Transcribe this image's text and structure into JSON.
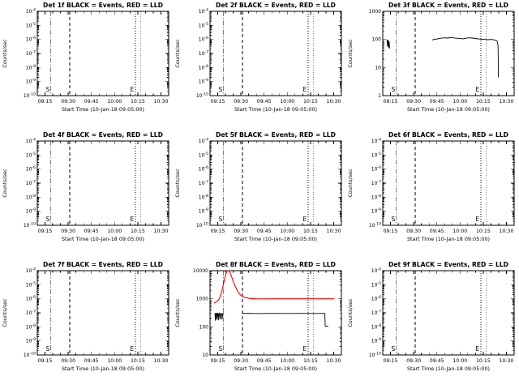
{
  "page": {
    "background": "#ffffff",
    "accent_black": "#000000",
    "accent_red": "#ff0000"
  },
  "chart_data": [
    {
      "type": "line",
      "title": "Det 1f BLACK = Events, RED = LLD",
      "xlabel": "Start Time (10-Jan-18 09:05:00)",
      "ylabel": "Counts/sec",
      "x_range_minutes": [
        10,
        95
      ],
      "x_tick_minutes": [
        15,
        30,
        45,
        60,
        75,
        90
      ],
      "x_tick_labels": [
        "09:15",
        "09:30",
        "09:45",
        "10:00",
        "10:15",
        "10:30"
      ],
      "y_log_range_exp": [
        -10,
        -4
      ],
      "y_tick_exps": [
        -10,
        -9,
        -8,
        -7,
        -6,
        -5,
        -4
      ],
      "y_plain": false,
      "vlines": [
        {
          "x_min": 18.5,
          "style": "dashdot"
        },
        {
          "x_min": 31,
          "style": "dashed"
        },
        {
          "x_min": 73.5,
          "style": "dotted"
        },
        {
          "x_min": 77,
          "style": "dotted"
        }
      ],
      "markers": [
        {
          "label": "S",
          "x_min": 15.5
        },
        {
          "label": "E",
          "x_min": 70
        }
      ],
      "series": []
    },
    {
      "type": "line",
      "title": "Det 2f BLACK = Events, RED = LLD",
      "xlabel": "Start Time (10-Jan-18 09:05:00)",
      "ylabel": "Counts/sec",
      "x_range_minutes": [
        10,
        95
      ],
      "x_tick_minutes": [
        15,
        30,
        45,
        60,
        75,
        90
      ],
      "x_tick_labels": [
        "09:15",
        "09:30",
        "09:45",
        "10:00",
        "10:15",
        "10:30"
      ],
      "y_log_range_exp": [
        -10,
        -4
      ],
      "y_tick_exps": [
        -10,
        -9,
        -8,
        -7,
        -6,
        -5,
        -4
      ],
      "y_plain": false,
      "vlines": [
        {
          "x_min": 18.5,
          "style": "dashdot"
        },
        {
          "x_min": 31,
          "style": "dashed"
        },
        {
          "x_min": 73.5,
          "style": "dotted"
        },
        {
          "x_min": 77,
          "style": "dotted"
        }
      ],
      "markers": [
        {
          "label": "S",
          "x_min": 15.5
        },
        {
          "label": "E",
          "x_min": 70
        }
      ],
      "series": []
    },
    {
      "type": "line",
      "title": "Det 3f BLACK = Events, RED = LLD",
      "xlabel": "Start Time (10-Jan-18 09:05:00)",
      "ylabel": "Counts/sec",
      "x_range_minutes": [
        10,
        95
      ],
      "x_tick_minutes": [
        15,
        30,
        45,
        60,
        75,
        90
      ],
      "x_tick_labels": [
        "09:15",
        "09:30",
        "09:45",
        "10:00",
        "10:15",
        "10:30"
      ],
      "y_log_range_exp": [
        0,
        3
      ],
      "y_tick_exps": [
        0,
        1,
        2,
        3
      ],
      "y_plain": true,
      "vlines": [
        {
          "x_min": 18.5,
          "style": "dashdot"
        },
        {
          "x_min": 31,
          "style": "dashed"
        },
        {
          "x_min": 73.5,
          "style": "dotted"
        },
        {
          "x_min": 77,
          "style": "dotted"
        }
      ],
      "markers": [
        {
          "label": "S",
          "x_min": 15.5
        },
        {
          "label": "E",
          "x_min": 70
        }
      ],
      "series": [
        {
          "name": "Events",
          "color": "#000000",
          "width": 0.9,
          "segments": [
            {
              "x": [
                12.8,
                13.0,
                13.1,
                13.3,
                13.4,
                13.6,
                13.8,
                14.0,
                14.2,
                14.4
              ],
              "y": [
                100,
                62,
                95,
                55,
                90,
                65,
                88,
                52,
                80,
                47
              ]
            },
            {
              "x": [
                42,
                43,
                44,
                45,
                46,
                48,
                50,
                52,
                54,
                56,
                58,
                60,
                62,
                63,
                64,
                66,
                68,
                70,
                72,
                74,
                76,
                78,
                80,
                82,
                83,
                84,
                84.6,
                84.8
              ],
              "y": [
                96,
                100,
                104,
                102,
                107,
                111,
                114,
                112,
                116,
                113,
                110,
                107,
                105,
                108,
                111,
                114,
                112,
                108,
                104,
                102,
                100,
                98,
                100,
                97,
                92,
                88,
                60,
                4.5
              ]
            }
          ]
        }
      ]
    },
    {
      "type": "line",
      "title": "Det 4f BLACK = Events, RED = LLD",
      "xlabel": "Start Time (10-Jan-18 09:05:00)",
      "ylabel": "Counts/sec",
      "x_range_minutes": [
        10,
        95
      ],
      "x_tick_minutes": [
        15,
        30,
        45,
        60,
        75,
        90
      ],
      "x_tick_labels": [
        "09:15",
        "09:30",
        "09:45",
        "10:00",
        "10:15",
        "10:30"
      ],
      "y_log_range_exp": [
        -10,
        -4
      ],
      "y_tick_exps": [
        -10,
        -9,
        -8,
        -7,
        -6,
        -5,
        -4
      ],
      "y_plain": false,
      "vlines": [
        {
          "x_min": 18.5,
          "style": "dashdot"
        },
        {
          "x_min": 31,
          "style": "dashed"
        },
        {
          "x_min": 73.5,
          "style": "dotted"
        },
        {
          "x_min": 77,
          "style": "dotted"
        }
      ],
      "markers": [
        {
          "label": "S",
          "x_min": 15.5
        },
        {
          "label": "E",
          "x_min": 70
        }
      ],
      "series": []
    },
    {
      "type": "line",
      "title": "Det 5f BLACK = Events, RED = LLD",
      "xlabel": "Start Time (10-Jan-18 09:05:00)",
      "ylabel": "Counts/sec",
      "x_range_minutes": [
        10,
        95
      ],
      "x_tick_minutes": [
        15,
        30,
        45,
        60,
        75,
        90
      ],
      "x_tick_labels": [
        "09:15",
        "09:30",
        "09:45",
        "10:00",
        "10:15",
        "10:30"
      ],
      "y_log_range_exp": [
        -10,
        -4
      ],
      "y_tick_exps": [
        -10,
        -9,
        -8,
        -7,
        -6,
        -5,
        -4
      ],
      "y_plain": false,
      "vlines": [
        {
          "x_min": 18.5,
          "style": "dashdot"
        },
        {
          "x_min": 31,
          "style": "dashed"
        },
        {
          "x_min": 73.5,
          "style": "dotted"
        },
        {
          "x_min": 77,
          "style": "dotted"
        }
      ],
      "markers": [
        {
          "label": "S",
          "x_min": 15.5
        },
        {
          "label": "E",
          "x_min": 70
        }
      ],
      "series": []
    },
    {
      "type": "line",
      "title": "Det 6f BLACK = Events, RED = LLD",
      "xlabel": "Start Time (10-Jan-18 09:05:00)",
      "ylabel": "Counts/sec",
      "x_range_minutes": [
        10,
        95
      ],
      "x_tick_minutes": [
        15,
        30,
        45,
        60,
        75,
        90
      ],
      "x_tick_labels": [
        "09:15",
        "09:30",
        "09:45",
        "10:00",
        "10:15",
        "10:30"
      ],
      "y_log_range_exp": [
        -10,
        -4
      ],
      "y_tick_exps": [
        -10,
        -9,
        -8,
        -7,
        -6,
        -5,
        -4
      ],
      "y_plain": false,
      "vlines": [
        {
          "x_min": 18.5,
          "style": "dashdot"
        },
        {
          "x_min": 31,
          "style": "dashed"
        },
        {
          "x_min": 73.5,
          "style": "dotted"
        },
        {
          "x_min": 77,
          "style": "dotted"
        }
      ],
      "markers": [
        {
          "label": "S",
          "x_min": 15.5
        },
        {
          "label": "E",
          "x_min": 70
        }
      ],
      "series": []
    },
    {
      "type": "line",
      "title": "Det 7f BLACK = Events, RED = LLD",
      "xlabel": "Start Time (10-Jan-18 09:05:00)",
      "ylabel": "Counts/sec",
      "x_range_minutes": [
        10,
        95
      ],
      "x_tick_minutes": [
        15,
        30,
        45,
        60,
        75,
        90
      ],
      "x_tick_labels": [
        "09:15",
        "09:30",
        "09:45",
        "10:00",
        "10:15",
        "10:30"
      ],
      "y_log_range_exp": [
        -10,
        -4
      ],
      "y_tick_exps": [
        -10,
        -9,
        -8,
        -7,
        -6,
        -5,
        -4
      ],
      "y_plain": false,
      "vlines": [
        {
          "x_min": 18.5,
          "style": "dashdot"
        },
        {
          "x_min": 31,
          "style": "dashed"
        },
        {
          "x_min": 73.5,
          "style": "dotted"
        },
        {
          "x_min": 77,
          "style": "dotted"
        }
      ],
      "markers": [
        {
          "label": "S",
          "x_min": 15.5
        },
        {
          "label": "E",
          "x_min": 70
        }
      ],
      "series": []
    },
    {
      "type": "line",
      "title": "Det 8f BLACK = Events, RED = LLD",
      "xlabel": "Start Time (10-Jan-18 09:05:00)",
      "ylabel": "Counts/sec",
      "x_range_minutes": [
        10,
        95
      ],
      "x_tick_minutes": [
        15,
        30,
        45,
        60,
        75,
        90
      ],
      "x_tick_labels": [
        "09:15",
        "09:30",
        "09:45",
        "10:00",
        "10:15",
        "10:30"
      ],
      "y_log_range_exp": [
        1,
        4
      ],
      "y_tick_exps": [
        1,
        2,
        3,
        4
      ],
      "y_plain": true,
      "vlines": [
        {
          "x_min": 18.5,
          "style": "dashdot"
        },
        {
          "x_min": 31,
          "style": "dashed"
        },
        {
          "x_min": 73.5,
          "style": "dotted"
        },
        {
          "x_min": 77,
          "style": "dotted"
        }
      ],
      "markers": [
        {
          "label": "S",
          "x_min": 15.5
        },
        {
          "label": "E",
          "x_min": 70
        }
      ],
      "series": [
        {
          "name": "LLD",
          "color": "#ff0000",
          "width": 1.1,
          "segments": [
            {
              "x": [
                12.5,
                13,
                14,
                15,
                16,
                17,
                18,
                19,
                20,
                21,
                22,
                23,
                24,
                25,
                26,
                28,
                30,
                33,
                36,
                40,
                45,
                50,
                55,
                60,
                65,
                70,
                75,
                80,
                85,
                89,
                90.5
              ],
              "y": [
                700,
                720,
                780,
                850,
                1000,
                1400,
                2200,
                4000,
                7000,
                9800,
                10000,
                8500,
                6000,
                4200,
                3000,
                1800,
                1300,
                1100,
                1020,
                1000,
                990,
                1000,
                1000,
                995,
                1000,
                1000,
                1000,
                1000,
                1000,
                1000,
                1000
              ]
            }
          ]
        },
        {
          "name": "Events",
          "color": "#000000",
          "width": 0.9,
          "segments": [
            {
              "x": [
                13.2,
                13.4,
                13.6,
                13.9,
                14.1,
                14.4,
                14.7,
                15.0,
                15.3,
                15.6,
                15.9,
                16.2,
                16.6,
                17.0,
                17.4,
                17.8,
                18.2,
                18.6,
                19.0
              ],
              "y": [
                310,
                170,
                300,
                190,
                310,
                300,
                180,
                305,
                295,
                175,
                300,
                310,
                190,
                305,
                300,
                185,
                300,
                295,
                300
              ]
            },
            {
              "x": [
                30.5,
                35,
                40,
                45,
                50,
                55,
                60,
                65,
                70,
                75,
                80,
                84.3,
                84.5,
                86.5
              ],
              "y": [
                300,
                302,
                298,
                300,
                301,
                299,
                300,
                300,
                301,
                299,
                300,
                300,
                105,
                105
              ]
            }
          ]
        }
      ]
    },
    {
      "type": "line",
      "title": "Det 9f BLACK = Events, RED = LLD",
      "xlabel": "Start Time (10-Jan-18 09:05:00)",
      "ylabel": "Counts/sec",
      "x_range_minutes": [
        10,
        95
      ],
      "x_tick_minutes": [
        15,
        30,
        45,
        60,
        75,
        90
      ],
      "x_tick_labels": [
        "09:15",
        "09:30",
        "09:45",
        "10:00",
        "10:15",
        "10:30"
      ],
      "y_log_range_exp": [
        -10,
        -4
      ],
      "y_tick_exps": [
        -10,
        -9,
        -8,
        -7,
        -6,
        -5,
        -4
      ],
      "y_plain": false,
      "vlines": [
        {
          "x_min": 18.5,
          "style": "dashdot"
        },
        {
          "x_min": 31,
          "style": "dashed"
        },
        {
          "x_min": 73.5,
          "style": "dotted"
        },
        {
          "x_min": 77,
          "style": "dotted"
        }
      ],
      "markers": [
        {
          "label": "S",
          "x_min": 15.5
        },
        {
          "label": "E",
          "x_min": 70
        }
      ],
      "series": []
    }
  ]
}
